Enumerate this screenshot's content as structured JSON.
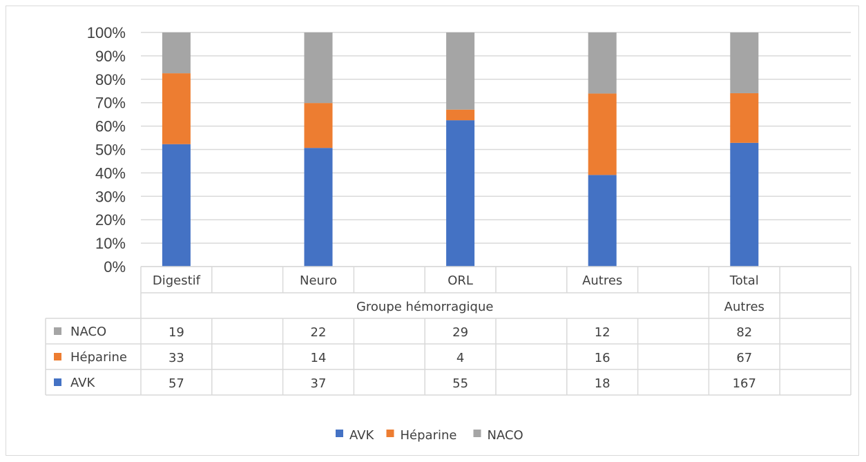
{
  "chart_data": {
    "type": "bar",
    "stacked": "percent",
    "categories": [
      "Digestif",
      "Neuro",
      "ORL",
      "Autres",
      "Total\nAutres"
    ],
    "category_lines": [
      [
        "Digestif"
      ],
      [
        "Neuro"
      ],
      [
        "ORL"
      ],
      [
        "Autres"
      ],
      [
        "Total",
        "Autres"
      ]
    ],
    "group_label": "Groupe hémorragique",
    "series": [
      {
        "name": "AVK",
        "values": [
          57,
          37,
          55,
          18,
          167
        ],
        "color": "#4472C4"
      },
      {
        "name": "Héparine",
        "values": [
          33,
          14,
          4,
          16,
          67
        ],
        "color": "#ED7D31"
      },
      {
        "name": "NACO",
        "values": [
          19,
          22,
          29,
          12,
          82
        ],
        "color": "#A5A5A5"
      }
    ],
    "yticks": [
      "0%",
      "10%",
      "20%",
      "30%",
      "40%",
      "50%",
      "60%",
      "70%",
      "80%",
      "90%",
      "100%"
    ],
    "ylim": [
      0,
      100
    ],
    "grid": true,
    "legend": "bottom",
    "data_table": true
  }
}
